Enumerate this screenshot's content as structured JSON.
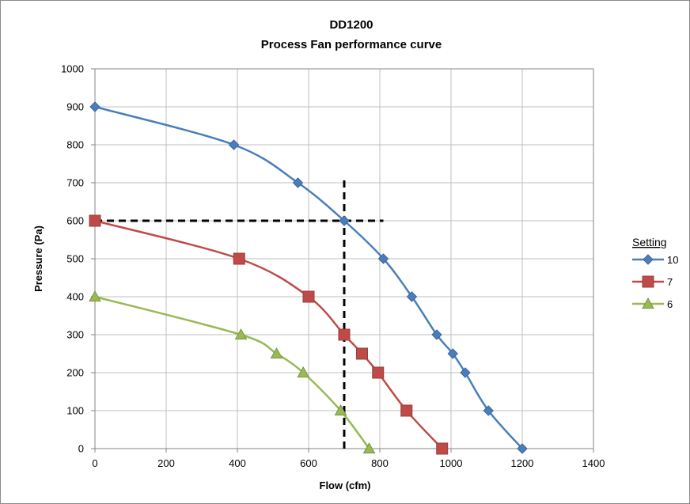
{
  "chart_data": {
    "type": "line",
    "title": "DD1200",
    "subtitle": "Process Fan performance curve",
    "xlabel": "Flow (cfm)",
    "ylabel": "Pressure (Pa)",
    "xlim": [
      0,
      1400
    ],
    "ylim": [
      0,
      1000
    ],
    "x_ticks": [
      0,
      200,
      400,
      600,
      800,
      1000,
      1200,
      1400
    ],
    "y_ticks": [
      0,
      100,
      200,
      300,
      400,
      500,
      600,
      700,
      800,
      900,
      1000
    ],
    "grid": "on",
    "legend_title": "Setting",
    "legend_position": "right",
    "series": [
      {
        "name": "10",
        "color": "#4a7ebb",
        "marker": "diamond",
        "points": [
          [
            0,
            900
          ],
          [
            390,
            800
          ],
          [
            570,
            700
          ],
          [
            700,
            600
          ],
          [
            810,
            500
          ],
          [
            890,
            400
          ],
          [
            960,
            300
          ],
          [
            1005,
            250
          ],
          [
            1040,
            200
          ],
          [
            1105,
            100
          ],
          [
            1200,
            0
          ]
        ]
      },
      {
        "name": "7",
        "color": "#be4b48",
        "marker": "square",
        "points": [
          [
            0,
            600
          ],
          [
            405,
            500
          ],
          [
            600,
            400
          ],
          [
            700,
            300
          ],
          [
            750,
            250
          ],
          [
            795,
            200
          ],
          [
            875,
            100
          ],
          [
            975,
            0
          ]
        ]
      },
      {
        "name": "6",
        "color": "#98b954",
        "marker": "triangle",
        "points": [
          [
            0,
            400
          ],
          [
            410,
            300
          ],
          [
            510,
            250
          ],
          [
            585,
            200
          ],
          [
            690,
            100
          ],
          [
            770,
            0
          ]
        ]
      }
    ],
    "reference_lines": [
      {
        "type": "vertical",
        "x": 700,
        "y_from": 0,
        "y_to": 710,
        "style": "dashed",
        "color": "#000000"
      },
      {
        "type": "horizontal",
        "y": 600,
        "x_from": 0,
        "x_to": 810,
        "style": "dashed",
        "color": "#000000"
      }
    ]
  }
}
